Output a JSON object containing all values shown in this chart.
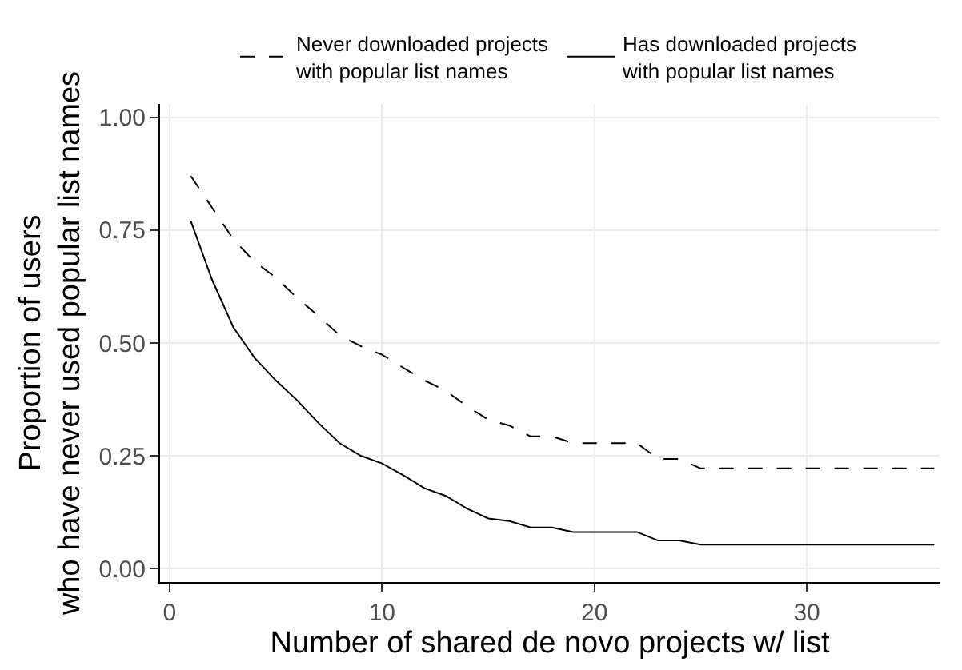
{
  "chart_data": {
    "type": "line",
    "xlabel": "Number of shared de novo projects w/ list",
    "ylabel": "Proportion of users\nwho have never used popular list names",
    "x": [
      1,
      2,
      3,
      4,
      5,
      6,
      7,
      8,
      9,
      10,
      11,
      12,
      13,
      14,
      15,
      16,
      17,
      18,
      19,
      20,
      21,
      22,
      23,
      24,
      25,
      36
    ],
    "series": [
      {
        "name": "Never downloaded projects\nwith popular list names",
        "color": "#000000",
        "line_style": "dashed",
        "values": [
          0.87,
          0.8,
          0.73,
          0.68,
          0.645,
          0.6,
          0.56,
          0.517,
          0.493,
          0.474,
          0.445,
          0.417,
          0.394,
          0.36,
          0.33,
          0.317,
          0.293,
          0.293,
          0.278,
          0.278,
          0.278,
          0.278,
          0.243,
          0.243,
          0.222,
          0.222
        ]
      },
      {
        "name": "Has downloaded projects\nwith popular list names",
        "color": "#000000",
        "line_style": "solid",
        "values": [
          0.77,
          0.64,
          0.535,
          0.467,
          0.417,
          0.373,
          0.323,
          0.278,
          0.25,
          0.233,
          0.207,
          0.178,
          0.161,
          0.133,
          0.111,
          0.105,
          0.091,
          0.091,
          0.081,
          0.081,
          0.081,
          0.081,
          0.062,
          0.062,
          0.053,
          0.053
        ]
      }
    ],
    "xlim": [
      -0.45,
      36.25
    ],
    "xticks": [
      0,
      10,
      20,
      30
    ],
    "ylim": [
      -0.03,
      1.03
    ],
    "yticks": [
      {
        "value": 0,
        "label": "0.00"
      },
      {
        "value": 0.25,
        "label": "0.25"
      },
      {
        "value": 0.5,
        "label": "0.50"
      },
      {
        "value": 0.75,
        "label": "0.75"
      },
      {
        "value": 1,
        "label": "1.00"
      }
    ],
    "grid": true,
    "legend": "top",
    "marker": "none"
  }
}
